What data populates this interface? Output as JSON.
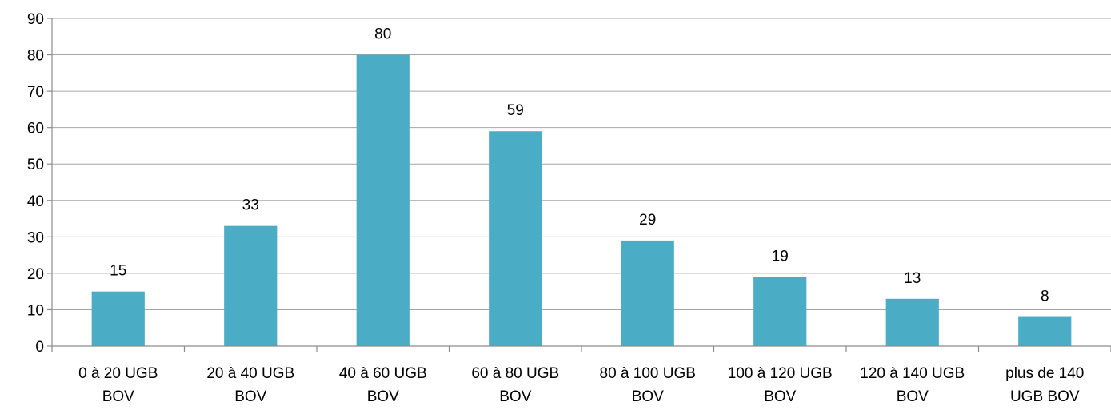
{
  "chart_data": {
    "type": "bar",
    "title": "",
    "xlabel": "",
    "ylabel": "",
    "categories": [
      [
        "0 à 20 UGB",
        "BOV"
      ],
      [
        "20 à 40 UGB",
        "BOV"
      ],
      [
        "40 à 60 UGB",
        "BOV"
      ],
      [
        "60 à 80 UGB",
        "BOV"
      ],
      [
        "80 à 100 UGB",
        "BOV"
      ],
      [
        "100 à 120 UGB",
        "BOV"
      ],
      [
        "120 à 140 UGB",
        "BOV"
      ],
      [
        "plus de 140",
        "UGB BOV"
      ]
    ],
    "values": [
      15,
      33,
      80,
      59,
      29,
      19,
      13,
      8
    ],
    "ylim": [
      0,
      90
    ],
    "yticks": [
      0,
      10,
      20,
      30,
      40,
      50,
      60,
      70,
      80,
      90
    ],
    "grid": true,
    "legend": "none",
    "bar_color": "#4bacc6",
    "data_labels": true
  }
}
